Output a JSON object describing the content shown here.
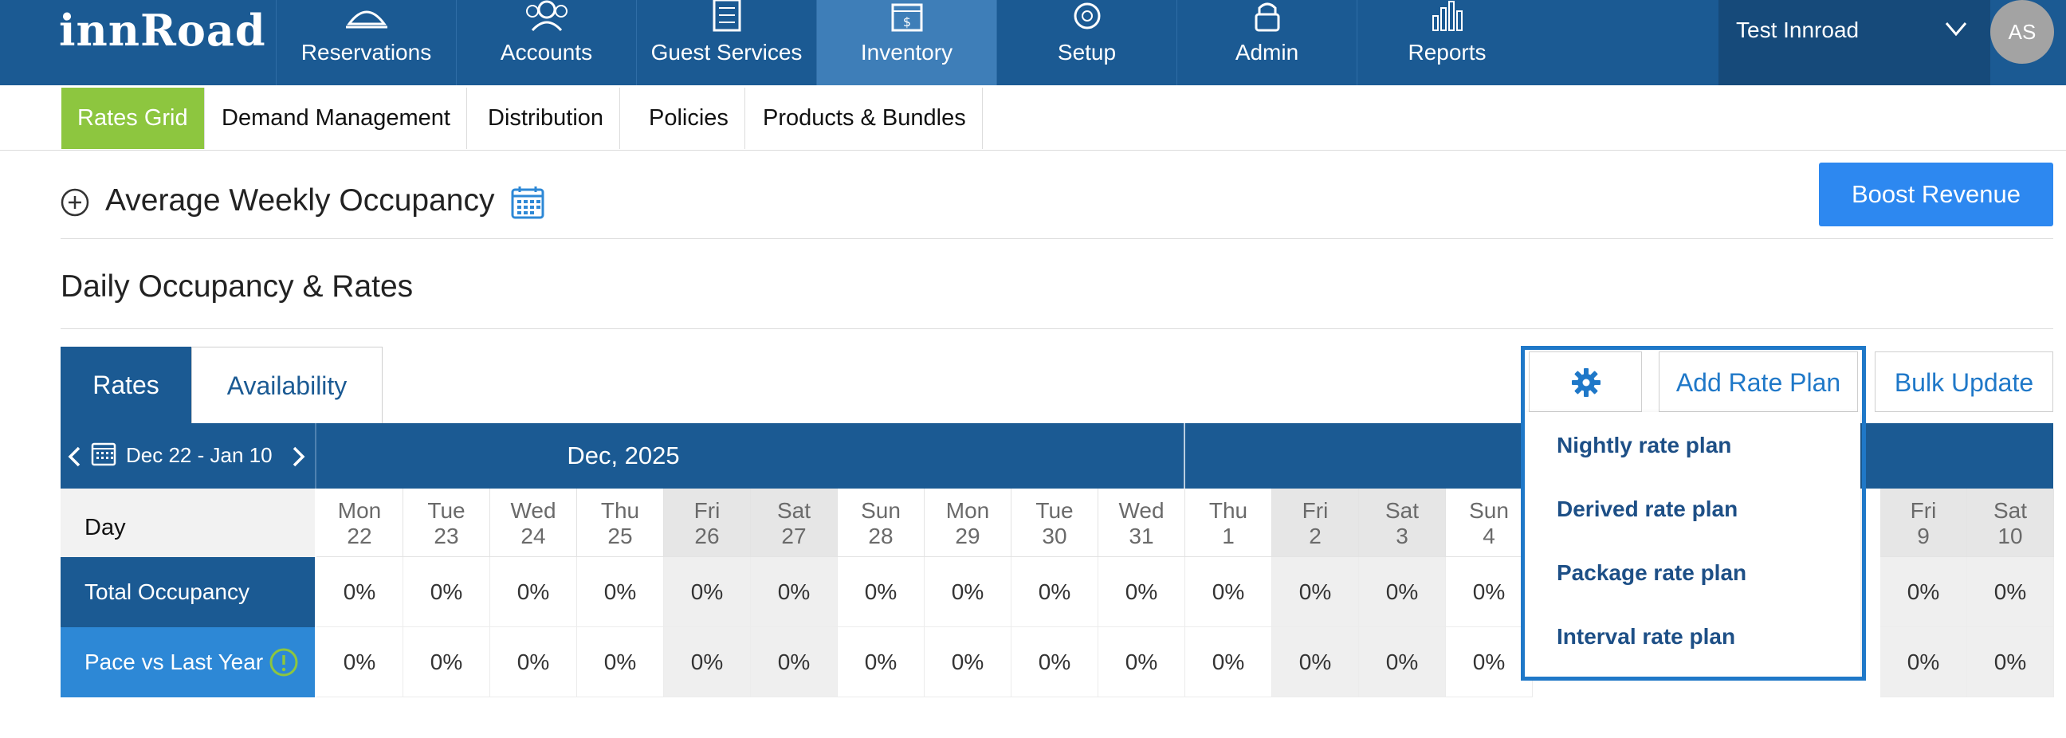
{
  "app": {
    "logo": "innRoad"
  },
  "topnav": {
    "items": [
      {
        "label": "Reservations",
        "icon": "service-bell-icon"
      },
      {
        "label": "Accounts",
        "icon": "users-icon"
      },
      {
        "label": "Guest Services",
        "icon": "clipboard-list-icon"
      },
      {
        "label": "Inventory",
        "icon": "cash-register-icon",
        "active": true
      },
      {
        "label": "Setup",
        "icon": "gear-icon"
      },
      {
        "label": "Admin",
        "icon": "padlock-icon"
      },
      {
        "label": "Reports",
        "icon": "bar-chart-icon"
      }
    ],
    "user": {
      "name": "Test Innroad",
      "initials": "AS"
    }
  },
  "subnav": {
    "items": [
      {
        "label": "Rates Grid",
        "active": true
      },
      {
        "label": "Demand Management"
      },
      {
        "label": "Distribution"
      },
      {
        "label": "Policies"
      },
      {
        "label": "Products & Bundles"
      }
    ]
  },
  "weekly": {
    "title": "Average Weekly Occupancy"
  },
  "boost": {
    "label": "Boost Revenue"
  },
  "daily": {
    "title": "Daily Occupancy & Rates"
  },
  "tabs": {
    "rates": "Rates",
    "availability": "Availability"
  },
  "actions": {
    "add_rate_plan": "Add Rate Plan",
    "bulk_update": "Bulk Update",
    "dropdown": [
      "Nightly rate plan",
      "Derived rate plan",
      "Package rate plan",
      "Interval rate plan"
    ]
  },
  "grid": {
    "date_range": "Dec 22 - Jan 10",
    "month": "Dec, 2025",
    "row_labels": {
      "day": "Day",
      "total_occupancy": "Total Occupancy",
      "pace": "Pace vs Last Year"
    },
    "days": [
      {
        "dow": "Mon",
        "num": "22",
        "weekend": false
      },
      {
        "dow": "Tue",
        "num": "23",
        "weekend": false
      },
      {
        "dow": "Wed",
        "num": "24",
        "weekend": false
      },
      {
        "dow": "Thu",
        "num": "25",
        "weekend": false
      },
      {
        "dow": "Fri",
        "num": "26",
        "weekend": true
      },
      {
        "dow": "Sat",
        "num": "27",
        "weekend": true
      },
      {
        "dow": "Sun",
        "num": "28",
        "weekend": false
      },
      {
        "dow": "Mon",
        "num": "29",
        "weekend": false
      },
      {
        "dow": "Tue",
        "num": "30",
        "weekend": false
      },
      {
        "dow": "Wed",
        "num": "31",
        "weekend": false
      },
      {
        "dow": "Thu",
        "num": "1",
        "weekend": false
      },
      {
        "dow": "Fri",
        "num": "2",
        "weekend": true
      },
      {
        "dow": "Sat",
        "num": "3",
        "weekend": true
      },
      {
        "dow": "Sun",
        "num": "4",
        "weekend": false
      },
      {
        "dow": "Fri",
        "num": "9",
        "weekend": true
      },
      {
        "dow": "Sat",
        "num": "10",
        "weekend": true
      }
    ],
    "total_occupancy": [
      "0%",
      "0%",
      "0%",
      "0%",
      "0%",
      "0%",
      "0%",
      "0%",
      "0%",
      "0%",
      "0%",
      "0%",
      "0%",
      "0%",
      "0%",
      "0%"
    ],
    "pace": [
      "0%",
      "0%",
      "0%",
      "0%",
      "0%",
      "0%",
      "0%",
      "0%",
      "0%",
      "0%",
      "0%",
      "0%",
      "0%",
      "0%",
      "0%",
      "0%"
    ]
  },
  "colors": {
    "nav_blue": "#1b5a93",
    "nav_active": "#3e7eb8",
    "subnav_active": "#8dc63f",
    "button_blue": "#2d88f0",
    "link_blue": "#1f78c8",
    "pace_blue": "#2d88d6"
  }
}
